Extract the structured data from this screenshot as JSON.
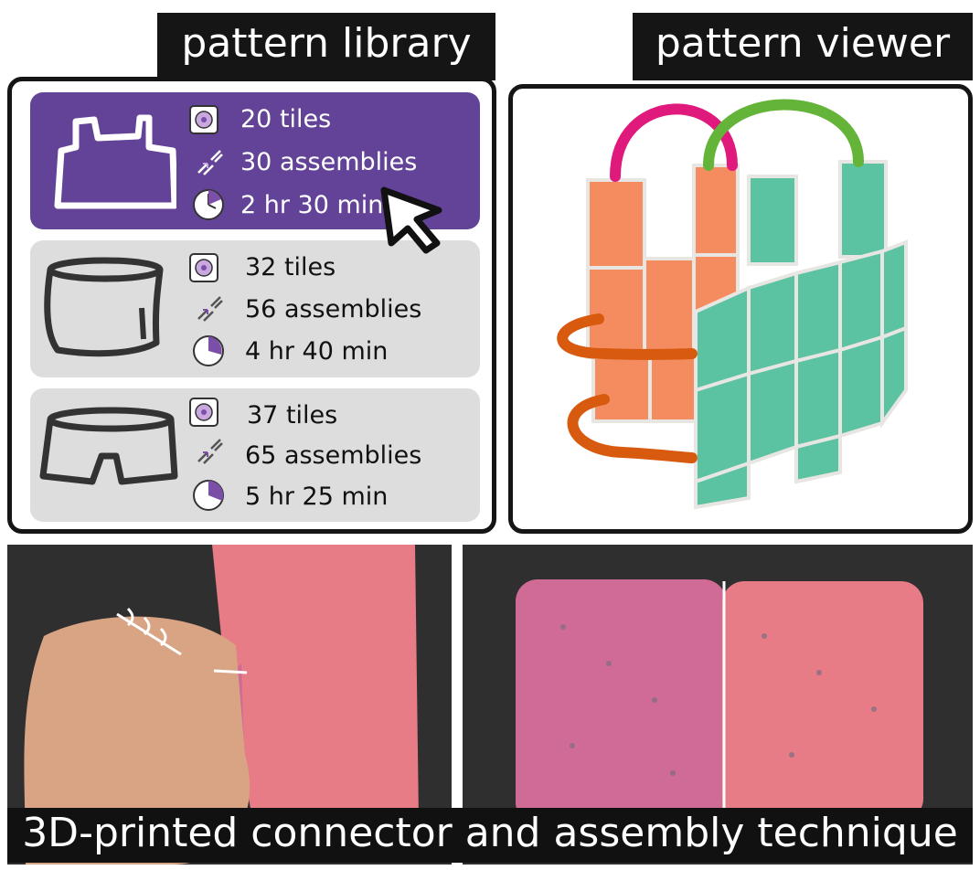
{
  "tabs": {
    "library": "pattern library",
    "viewer": "pattern viewer"
  },
  "patterns": [
    {
      "garment": "top-icon",
      "tiles": "20 tiles",
      "assemblies": "30 assemblies",
      "time": "2 hr 30 min",
      "selected": true
    },
    {
      "garment": "skirt-icon",
      "tiles": "32 tiles",
      "assemblies": "56 assemblies",
      "time": "4 hr 40 min",
      "selected": false
    },
    {
      "garment": "shorts-icon",
      "tiles": "37 tiles",
      "assemblies": "65 assemblies",
      "time": "5 hr 25 min",
      "selected": false
    }
  ],
  "caption": "3D-printed connector and assembly technique",
  "colors": {
    "selected": "#634397",
    "card": "#dddddd",
    "accent": "#7b4fa8",
    "orange": "#f58c5f",
    "teal": "#5bc2a2",
    "pink": "#e0197d",
    "green": "#64b43a",
    "dark_orange": "#d85a0f"
  }
}
